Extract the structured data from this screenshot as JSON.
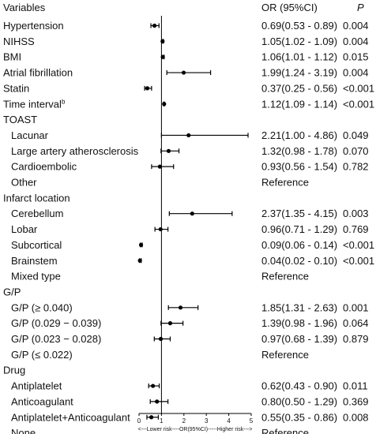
{
  "headers": {
    "variables": "Variables",
    "or_ci": "OR (95%CI)",
    "p": "P"
  },
  "axis": {
    "ticks": [
      "0",
      "1",
      "2",
      "3",
      "4",
      "5"
    ],
    "caption": "<---Lower risk----OR(95%CI)-----Higher risk--->",
    "xlim": [
      0,
      5
    ]
  },
  "colors": {
    "marks": "#000000",
    "text": "#111111"
  },
  "chart_data": {
    "type": "forest",
    "xlim": [
      0,
      5
    ],
    "reference_line": 1,
    "rows": [
      {
        "label": "Hypertension",
        "indent": 0,
        "or": 0.69,
        "lo": 0.53,
        "hi": 0.89,
        "ci_text": "0.69(0.53 - 0.89)",
        "p": "0.004"
      },
      {
        "label": "NIHSS",
        "indent": 0,
        "or": 1.05,
        "lo": 1.02,
        "hi": 1.09,
        "ci_text": "1.05(1.02 - 1.09)",
        "p": "0.004"
      },
      {
        "label": "BMI",
        "indent": 0,
        "or": 1.06,
        "lo": 1.01,
        "hi": 1.12,
        "ci_text": "1.06(1.01 - 1.12)",
        "p": "0.015"
      },
      {
        "label": "Atrial fibrillation",
        "indent": 0,
        "or": 1.99,
        "lo": 1.24,
        "hi": 3.19,
        "ci_text": "1.99(1.24 - 3.19)",
        "p": "0.004"
      },
      {
        "label": "Statin",
        "indent": 0,
        "or": 0.37,
        "lo": 0.25,
        "hi": 0.56,
        "ci_text": "0.37(0.25 - 0.56)",
        "p": "<0.001"
      },
      {
        "label": "Time interval",
        "sup": "b",
        "indent": 0,
        "or": 1.12,
        "lo": 1.09,
        "hi": 1.14,
        "ci_text": "1.12(1.09 - 1.14)",
        "p": "<0.001"
      },
      {
        "label": "TOAST",
        "indent": 0,
        "group": true
      },
      {
        "label": "Lacunar",
        "indent": 1,
        "or": 2.21,
        "lo": 1.0,
        "hi": 4.86,
        "ci_text": "2.21(1.00 - 4.86)",
        "p": "0.049"
      },
      {
        "label": "Large artery atherosclerosis",
        "indent": 1,
        "or": 1.32,
        "lo": 0.98,
        "hi": 1.78,
        "ci_text": "1.32(0.98 - 1.78)",
        "p": "0.070"
      },
      {
        "label": "Cardioembolic",
        "indent": 1,
        "or": 0.93,
        "lo": 0.56,
        "hi": 1.54,
        "ci_text": "0.93(0.56 - 1.54)",
        "p": "0.782"
      },
      {
        "label": "Other",
        "indent": 1,
        "ref": "Reference"
      },
      {
        "label": "Infarct location",
        "indent": 0,
        "group": true
      },
      {
        "label": "Cerebellum",
        "indent": 1,
        "or": 2.37,
        "lo": 1.35,
        "hi": 4.15,
        "ci_text": "2.37(1.35 - 4.15)",
        "p": "0.003"
      },
      {
        "label": "Lobar",
        "indent": 1,
        "or": 0.96,
        "lo": 0.71,
        "hi": 1.29,
        "ci_text": "0.96(0.71 - 1.29)",
        "p": "0.769"
      },
      {
        "label": "Subcortical",
        "indent": 1,
        "or": 0.09,
        "lo": 0.06,
        "hi": 0.14,
        "ci_text": "0.09(0.06 - 0.14)",
        "p": "<0.001"
      },
      {
        "label": "Brainstem",
        "indent": 1,
        "or": 0.04,
        "lo": 0.02,
        "hi": 0.1,
        "ci_text": "0.04(0.02 - 0.10)",
        "p": "<0.001"
      },
      {
        "label": "Mixed type",
        "indent": 1,
        "ref": "Reference"
      },
      {
        "label": "G/P",
        "indent": 0,
        "group": true
      },
      {
        "label": "G/P (≥ 0.040)",
        "indent": 1,
        "or": 1.85,
        "lo": 1.31,
        "hi": 2.63,
        "ci_text": "1.85(1.31 - 2.63)",
        "p": "0.001"
      },
      {
        "label": "G/P (0.029 − 0.039)",
        "indent": 1,
        "or": 1.39,
        "lo": 0.98,
        "hi": 1.96,
        "ci_text": "1.39(0.98 - 1.96)",
        "p": "0.064"
      },
      {
        "label": "G/P (0.023 − 0.028)",
        "indent": 1,
        "or": 0.97,
        "lo": 0.68,
        "hi": 1.39,
        "ci_text": "0.97(0.68 - 1.39)",
        "p": "0.879"
      },
      {
        "label": "G/P (≤ 0.022)",
        "indent": 1,
        "ref": "Reference"
      },
      {
        "label": "Drug",
        "indent": 0,
        "group": true
      },
      {
        "label": "Antiplatelet",
        "indent": 1,
        "or": 0.62,
        "lo": 0.43,
        "hi": 0.9,
        "ci_text": "0.62(0.43 - 0.90)",
        "p": "0.011"
      },
      {
        "label": "Anticoagulant",
        "indent": 1,
        "or": 0.8,
        "lo": 0.5,
        "hi": 1.29,
        "ci_text": "0.80(0.50 - 1.29)",
        "p": "0.369"
      },
      {
        "label": "Antiplatelet+Anticoagulant",
        "indent": 1,
        "or": 0.55,
        "lo": 0.35,
        "hi": 0.86,
        "ci_text": "0.55(0.35 - 0.86)",
        "p": "0.008"
      },
      {
        "label": "None",
        "indent": 1,
        "ref": "Reference"
      }
    ]
  }
}
